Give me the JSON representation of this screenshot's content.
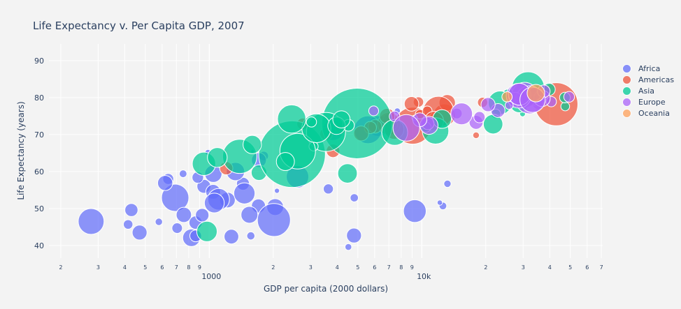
{
  "chart_data": {
    "type": "scatter",
    "title": "Life Expectancy v. Per Capita GDP, 2007",
    "xlabel": "GDP per capita (2000 dollars)",
    "ylabel": "Life Expectancy (years)",
    "x_scale": "log",
    "xlim": [
      176,
      71000
    ],
    "ylim": [
      36.6,
      94.5
    ],
    "grid": true,
    "legend_position": "right",
    "marker_size_encodes": "population (millions)",
    "x_ticks": [
      {
        "v": 200,
        "label": "2"
      },
      {
        "v": 300,
        "label": "3"
      },
      {
        "v": 400,
        "label": "4"
      },
      {
        "v": 500,
        "label": "5"
      },
      {
        "v": 600,
        "label": "6"
      },
      {
        "v": 700,
        "label": "7"
      },
      {
        "v": 800,
        "label": "8"
      },
      {
        "v": 900,
        "label": "9"
      },
      {
        "v": 1000,
        "label": "1000",
        "major": true
      },
      {
        "v": 2000,
        "label": "2"
      },
      {
        "v": 3000,
        "label": "3"
      },
      {
        "v": 4000,
        "label": "4"
      },
      {
        "v": 5000,
        "label": "5"
      },
      {
        "v": 6000,
        "label": "6"
      },
      {
        "v": 7000,
        "label": "7"
      },
      {
        "v": 8000,
        "label": "8"
      },
      {
        "v": 9000,
        "label": "9"
      },
      {
        "v": 10000,
        "label": "10k",
        "major": true
      },
      {
        "v": 20000,
        "label": "2"
      },
      {
        "v": 30000,
        "label": "3"
      },
      {
        "v": 40000,
        "label": "4"
      },
      {
        "v": 50000,
        "label": "5"
      },
      {
        "v": 60000,
        "label": "6"
      },
      {
        "v": 70000,
        "label": "7"
      }
    ],
    "y_ticks": [
      {
        "v": 40,
        "label": "40"
      },
      {
        "v": 50,
        "label": "50"
      },
      {
        "v": 60,
        "label": "60"
      },
      {
        "v": 70,
        "label": "70"
      },
      {
        "v": 80,
        "label": "80"
      },
      {
        "v": 90,
        "label": "90"
      }
    ],
    "series": [
      {
        "name": "Africa",
        "color": "#636efa",
        "points": [
          [
            6223,
            72.3,
            33.3
          ],
          [
            4797,
            42.7,
            12.4
          ],
          [
            1441,
            56.7,
            8.08
          ],
          [
            12570,
            50.7,
            1.64
          ],
          [
            1217,
            52.3,
            14.3
          ],
          [
            430,
            49.6,
            8.4
          ],
          [
            2042,
            50.4,
            17.7
          ],
          [
            706,
            44.7,
            4.37
          ],
          [
            1704,
            50.7,
            10.2
          ],
          [
            986,
            65.2,
            0.71
          ],
          [
            278,
            46.5,
            64.6
          ],
          [
            3633,
            55.3,
            3.8
          ],
          [
            1545,
            48.3,
            18.0
          ],
          [
            2082,
            54.8,
            0.5
          ],
          [
            5581,
            71.3,
            80.3
          ],
          [
            12154,
            51.6,
            0.55
          ],
          [
            641,
            58.0,
            4.9
          ],
          [
            691,
            52.9,
            76.5
          ],
          [
            13206,
            56.7,
            1.45
          ],
          [
            753,
            59.4,
            1.69
          ],
          [
            1328,
            60.0,
            22.9
          ],
          [
            943,
            56.0,
            9.9
          ],
          [
            579,
            46.4,
            1.47
          ],
          [
            1463,
            54.1,
            35.6
          ],
          [
            1569,
            42.6,
            2.0
          ],
          [
            415,
            45.7,
            3.2
          ],
          [
            12057,
            74.0,
            6.0
          ],
          [
            1045,
            59.4,
            19.2
          ],
          [
            759,
            48.3,
            13.3
          ],
          [
            1043,
            54.5,
            12.0
          ],
          [
            1803,
            64.2,
            3.27
          ],
          [
            10957,
            72.8,
            1.25
          ],
          [
            3820,
            71.2,
            33.8
          ],
          [
            824,
            42.1,
            20.0
          ],
          [
            4811,
            52.9,
            2.06
          ],
          [
            620,
            56.9,
            12.9
          ],
          [
            2014,
            46.9,
            135.0
          ],
          [
            7670,
            76.4,
            0.8
          ],
          [
            863,
            46.2,
            8.86
          ],
          [
            1598,
            65.5,
            0.2
          ],
          [
            1712,
            63.1,
            12.3
          ],
          [
            863,
            42.6,
            6.1
          ],
          [
            926,
            48.2,
            9.1
          ],
          [
            9270,
            49.3,
            44.0
          ],
          [
            2602,
            58.6,
            42.3
          ],
          [
            4513,
            39.6,
            1.13
          ],
          [
            1107,
            52.5,
            38.1
          ],
          [
            883,
            58.4,
            5.7
          ],
          [
            7093,
            73.9,
            10.3
          ],
          [
            1056,
            51.5,
            29.2
          ],
          [
            1271,
            42.4,
            11.7
          ],
          [
            470,
            43.5,
            12.3
          ]
        ]
      },
      {
        "name": "Americas",
        "color": "#EF553B",
        "points": [
          [
            12779,
            75.3,
            40.3
          ],
          [
            3822,
            65.6,
            9.1
          ],
          [
            9066,
            72.4,
            190.0
          ],
          [
            36319,
            80.7,
            33.4
          ],
          [
            13172,
            78.6,
            16.3
          ],
          [
            7007,
            72.9,
            44.2
          ],
          [
            9645,
            78.8,
            4.1
          ],
          [
            8948,
            78.3,
            11.4
          ],
          [
            6025,
            72.2,
            9.3
          ],
          [
            6873,
            75.0,
            13.8
          ],
          [
            5728,
            71.9,
            6.9
          ],
          [
            5186,
            70.3,
            12.6
          ],
          [
            1202,
            60.9,
            8.5
          ],
          [
            3548,
            70.2,
            7.5
          ],
          [
            7321,
            72.6,
            2.8
          ],
          [
            11978,
            76.2,
            108.7
          ],
          [
            2749,
            72.9,
            5.7
          ],
          [
            9809,
            75.5,
            3.2
          ],
          [
            4173,
            71.8,
            6.7
          ],
          [
            7409,
            71.4,
            28.7
          ],
          [
            19329,
            78.7,
            3.9
          ],
          [
            18009,
            69.8,
            1.06
          ],
          [
            42952,
            78.2,
            301.1
          ],
          [
            10611,
            76.4,
            3.4
          ],
          [
            11416,
            73.7,
            26.1
          ]
        ]
      },
      {
        "name": "Asia",
        "color": "#00cc96",
        "points": [
          [
            975,
            43.8,
            31.9
          ],
          [
            29796,
            75.6,
            0.71
          ],
          [
            1391,
            64.1,
            150.4
          ],
          [
            1714,
            59.7,
            14.1
          ],
          [
            4959,
            73.0,
            1318.7
          ],
          [
            39725,
            82.2,
            6.98
          ],
          [
            2452,
            64.7,
            1110.4
          ],
          [
            3541,
            70.7,
            223.5
          ],
          [
            11606,
            71.0,
            69.45
          ],
          [
            4471,
            59.5,
            27.5
          ],
          [
            25523,
            80.7,
            6.43
          ],
          [
            31656,
            82.6,
            127.5
          ],
          [
            4519,
            72.5,
            6.05
          ],
          [
            1593,
            67.3,
            23.3
          ],
          [
            23348,
            78.6,
            49.0
          ],
          [
            47307,
            77.6,
            2.5
          ],
          [
            10461,
            72.0,
            3.9
          ],
          [
            12452,
            74.2,
            24.8
          ],
          [
            3096,
            66.8,
            2.87
          ],
          [
            944,
            62.1,
            47.8
          ],
          [
            1091,
            63.8,
            28.9
          ],
          [
            22316,
            75.6,
            3.2
          ],
          [
            2606,
            65.5,
            169.3
          ],
          [
            3190,
            71.7,
            91.1
          ],
          [
            21655,
            72.8,
            27.6
          ],
          [
            47143,
            80.0,
            4.55
          ],
          [
            3970,
            72.4,
            20.4
          ],
          [
            4185,
            74.1,
            19.3
          ],
          [
            28718,
            78.4,
            23.2
          ],
          [
            7458,
            70.6,
            65.1
          ],
          [
            2442,
            74.2,
            85.3
          ],
          [
            3025,
            73.4,
            4.0
          ],
          [
            2281,
            62.7,
            22.2
          ]
        ]
      },
      {
        "name": "Europe",
        "color": "#ab63fa",
        "points": [
          [
            5937,
            76.4,
            3.6
          ],
          [
            36126,
            79.8,
            8.2
          ],
          [
            33693,
            79.4,
            10.4
          ],
          [
            7446,
            74.9,
            4.55
          ],
          [
            10681,
            73.0,
            7.3
          ],
          [
            14619,
            75.7,
            4.5
          ],
          [
            22833,
            76.5,
            10.2
          ],
          [
            35278,
            78.3,
            5.5
          ],
          [
            33207,
            79.3,
            5.2
          ],
          [
            30470,
            80.7,
            61.1
          ],
          [
            32170,
            79.4,
            82.4
          ],
          [
            27538,
            79.5,
            10.7
          ],
          [
            18009,
            73.3,
            10.0
          ],
          [
            36181,
            81.8,
            0.3
          ],
          [
            40676,
            78.9,
            4.1
          ],
          [
            28570,
            80.5,
            58.1
          ],
          [
            9254,
            74.5,
            0.68
          ],
          [
            36798,
            79.8,
            16.6
          ],
          [
            49357,
            80.2,
            4.6
          ],
          [
            15390,
            75.6,
            38.5
          ],
          [
            20510,
            78.1,
            10.6
          ],
          [
            10808,
            72.5,
            22.3
          ],
          [
            9787,
            74.0,
            10.2
          ],
          [
            18678,
            74.7,
            5.4
          ],
          [
            25768,
            77.9,
            2.0
          ],
          [
            28821,
            80.9,
            40.4
          ],
          [
            33860,
            80.9,
            9.0
          ],
          [
            37506,
            81.7,
            7.6
          ],
          [
            8458,
            71.8,
            71.2
          ],
          [
            33203,
            79.4,
            60.8
          ]
        ]
      },
      {
        "name": "Oceania",
        "color": "#FFA15A",
        "points": [
          [
            34435,
            81.2,
            20.4
          ],
          [
            25185,
            80.2,
            4.1
          ]
        ]
      }
    ]
  }
}
